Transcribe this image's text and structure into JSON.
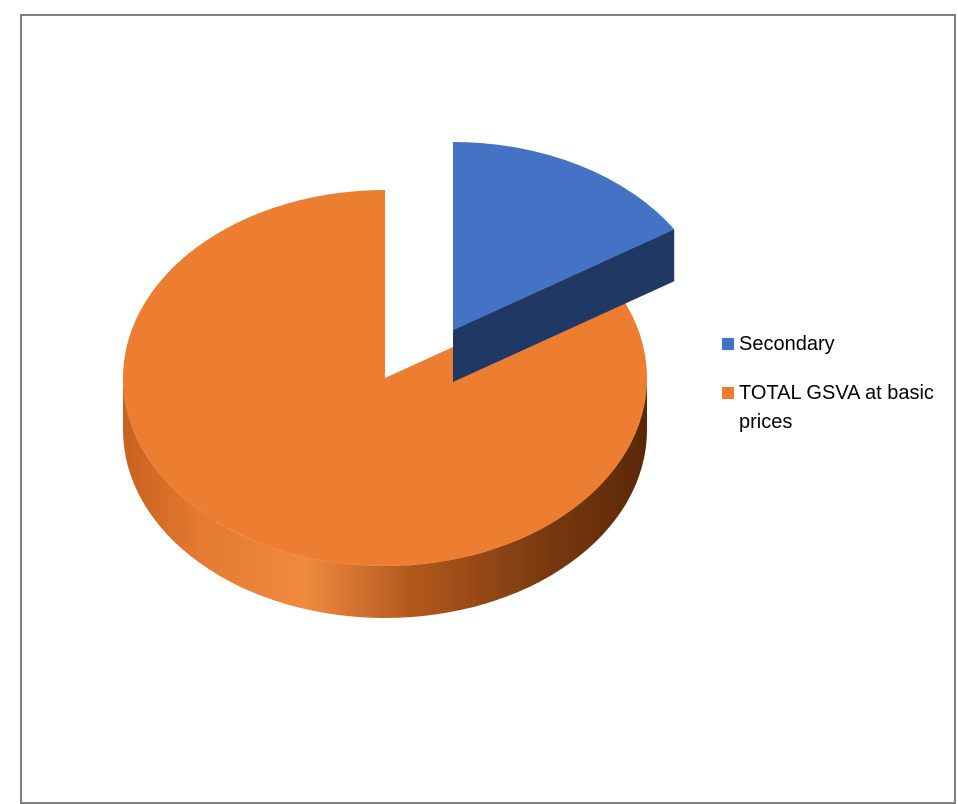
{
  "chart_data": {
    "type": "pie",
    "title": "",
    "categories": [
      "Secondary",
      "TOTAL GSVA at basic prices"
    ],
    "values": [
      16,
      84
    ],
    "colors": [
      "#4472c4",
      "#ed7d31"
    ],
    "exploded": [
      true,
      false
    ],
    "three_d": true,
    "legend_position": "right"
  },
  "legend": {
    "items": [
      {
        "label": "Secondary",
        "color": "#4472c4"
      },
      {
        "label": "TOTAL GSVA at basic prices",
        "color": "#ed7d31"
      }
    ]
  }
}
